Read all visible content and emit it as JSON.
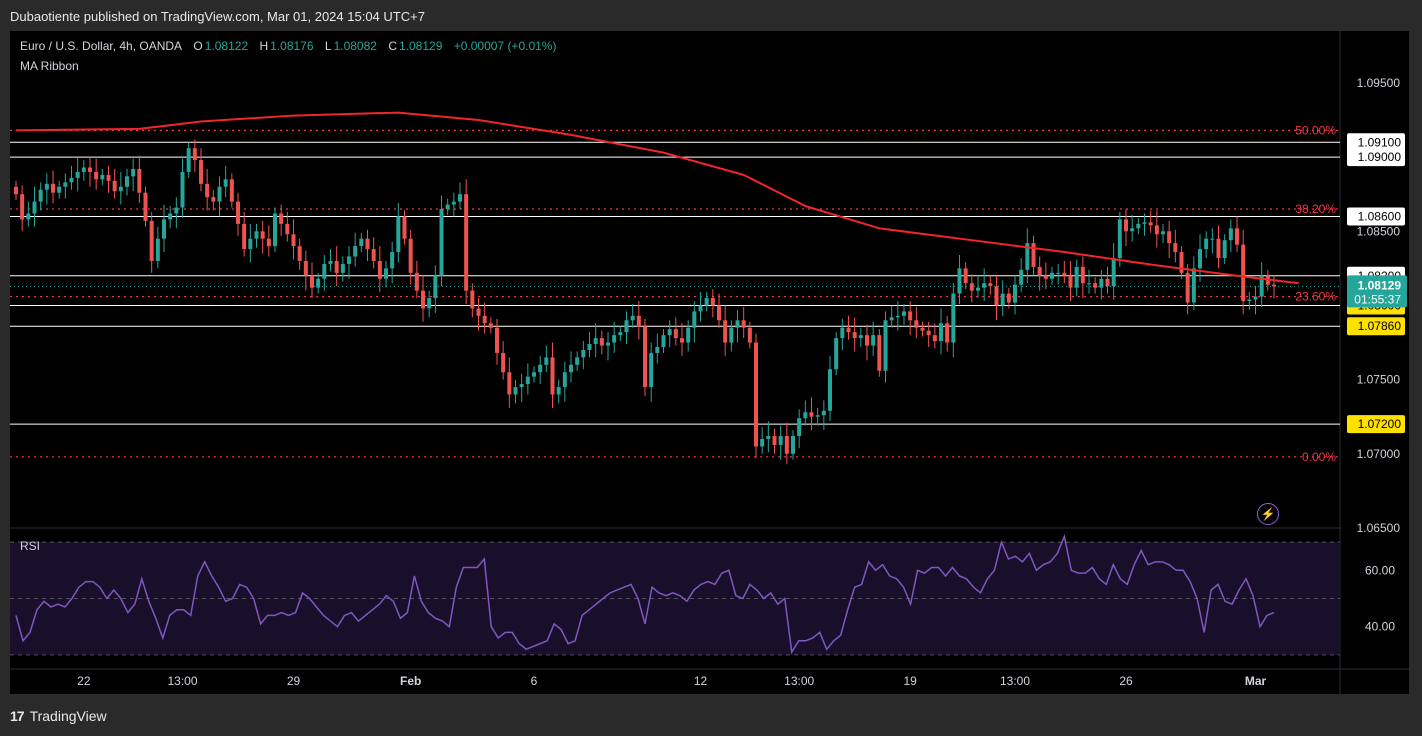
{
  "header": {
    "published": "Dubaotiente published on TradingView.com, Mar 01, 2024 15:04 UTC+7"
  },
  "legend": {
    "symbol": "Euro / U.S. Dollar, 4h, OANDA",
    "o_label": "O",
    "o_value": "1.08122",
    "h_label": "H",
    "h_value": "1.08176",
    "l_label": "L",
    "l_value": "1.08082",
    "c_label": "C",
    "c_value": "1.08129",
    "change": "+0.00007 (+0.01%)",
    "indicator": "MA Ribbon"
  },
  "rsi_label": "RSI",
  "footer": {
    "brand": "TradingView"
  },
  "colors": {
    "up": "#26a69a",
    "down": "#ef5350",
    "ma": "#f0262b",
    "fib": "#f23645",
    "rsi": "#7e57c2",
    "hline": "#ffffff",
    "highlight": "#ffe100"
  },
  "chart_data": [
    {
      "type": "candlestick",
      "ylim": [
        1.065,
        1.0985
      ],
      "price_ticks": [
        1.095,
        1.085,
        1.075,
        1.07,
        1.065
      ],
      "price_tick_labels": [
        "1.09500",
        "1.08500",
        "1.07500",
        "1.07000",
        "1.06500"
      ],
      "x_tick_labels": [
        "22",
        "13:00",
        "29",
        "Feb",
        "6",
        "12",
        "13:00",
        "19",
        "13:00",
        "26",
        "Mar"
      ],
      "x_tick_index": [
        11,
        27,
        45,
        64,
        84,
        111,
        127,
        145,
        162,
        180,
        201
      ],
      "horizontal_levels": [
        {
          "value": 1.091,
          "label": "1.09100",
          "style": "white"
        },
        {
          "value": 1.09,
          "label": "1.09000",
          "style": "white"
        },
        {
          "value": 1.086,
          "label": "1.08600",
          "style": "white"
        },
        {
          "value": 1.082,
          "label": "1.08200",
          "style": "white"
        },
        {
          "value": 1.08,
          "label": "1.08000",
          "style": "yellow"
        },
        {
          "value": 1.0786,
          "label": "1.07860",
          "style": "yellow"
        },
        {
          "value": 1.072,
          "label": "1.07200",
          "style": "yellow"
        }
      ],
      "fib_levels": [
        {
          "value": 1.0918,
          "label": "50.00%"
        },
        {
          "value": 1.0865,
          "label": "38.20%"
        },
        {
          "value": 1.0806,
          "label": "23.60%"
        },
        {
          "value": 1.0698,
          "label": "0.00%"
        }
      ],
      "current_price": {
        "value": 1.08129,
        "label": "1.08129",
        "countdown": "01:55:37"
      },
      "ma_ribbon": [
        [
          0,
          1.0918
        ],
        [
          20,
          1.0919
        ],
        [
          30,
          1.0924
        ],
        [
          45,
          1.0928
        ],
        [
          62,
          1.093
        ],
        [
          75,
          1.0925
        ],
        [
          90,
          1.0915
        ],
        [
          105,
          1.0903
        ],
        [
          118,
          1.0888
        ],
        [
          128,
          1.0867
        ],
        [
          140,
          1.0852
        ],
        [
          155,
          1.0844
        ],
        [
          170,
          1.0836
        ],
        [
          185,
          1.0827
        ],
        [
          198,
          1.082
        ],
        [
          208,
          1.0815
        ]
      ],
      "closes": [
        1.0875,
        1.0858,
        1.0862,
        1.087,
        1.0878,
        1.0882,
        1.0876,
        1.088,
        1.0883,
        1.0886,
        1.089,
        1.0893,
        1.089,
        1.0885,
        1.0888,
        1.0884,
        1.0877,
        1.088,
        1.0887,
        1.0892,
        1.0876,
        1.0857,
        1.083,
        1.0845,
        1.0858,
        1.0862,
        1.0866,
        1.089,
        1.0906,
        1.0898,
        1.0882,
        1.0873,
        1.087,
        1.088,
        1.0885,
        1.087,
        1.0855,
        1.0838,
        1.0845,
        1.085,
        1.0845,
        1.084,
        1.0862,
        1.0855,
        1.0848,
        1.084,
        1.083,
        1.082,
        1.0812,
        1.0818,
        1.0828,
        1.083,
        1.0822,
        1.0828,
        1.0833,
        1.084,
        1.0845,
        1.0838,
        1.083,
        1.0818,
        1.0825,
        1.0836,
        1.086,
        1.0845,
        1.0822,
        1.081,
        1.0798,
        1.0805,
        1.082,
        1.0865,
        1.0868,
        1.087,
        1.0875,
        1.081,
        1.0798,
        1.0793,
        1.0788,
        1.0785,
        1.0768,
        1.0755,
        1.074,
        1.0745,
        1.0747,
        1.0752,
        1.0755,
        1.076,
        1.0765,
        1.074,
        1.0745,
        1.0755,
        1.076,
        1.0765,
        1.077,
        1.0774,
        1.0778,
        1.0773,
        1.0775,
        1.078,
        1.0782,
        1.079,
        1.0793,
        1.0786,
        1.0745,
        1.0768,
        1.0772,
        1.078,
        1.0784,
        1.0778,
        1.0775,
        1.0785,
        1.0796,
        1.08,
        1.0805,
        1.08,
        1.079,
        1.0775,
        1.0785,
        1.079,
        1.0785,
        1.0775,
        1.0705,
        1.071,
        1.0712,
        1.0706,
        1.0712,
        1.07,
        1.0712,
        1.0724,
        1.0728,
        1.0725,
        1.0726,
        1.0729,
        1.0757,
        1.0778,
        1.0785,
        1.0782,
        1.0778,
        1.078,
        1.0773,
        1.078,
        1.0756,
        1.079,
        1.0792,
        1.0793,
        1.0796,
        1.079,
        1.0785,
        1.0783,
        1.078,
        1.0776,
        1.0788,
        1.0775,
        1.0808,
        1.0825,
        1.0815,
        1.081,
        1.0812,
        1.0815,
        1.0813,
        1.08,
        1.0808,
        1.0802,
        1.0814,
        1.0824,
        1.0842,
        1.0826,
        1.082,
        1.0818,
        1.0822,
        1.0822,
        1.082,
        1.0812,
        1.0826,
        1.0815,
        1.0815,
        1.0812,
        1.0818,
        1.0813,
        1.0832,
        1.0858,
        1.085,
        1.0852,
        1.0855,
        1.0856,
        1.0854,
        1.0848,
        1.085,
        1.0842,
        1.0836,
        1.0822,
        1.0802,
        1.0825,
        1.0838,
        1.0845,
        1.0845,
        1.0832,
        1.0844,
        1.0852,
        1.0841,
        1.0803,
        1.0804,
        1.0806,
        1.082,
        1.0814,
        1.08129
      ],
      "ohlc_note": "Candle values are closes estimated from the price axis; each candle opens at the previous close."
    },
    {
      "type": "line",
      "name": "RSI",
      "ylim": [
        25,
        75
      ],
      "ticks": [
        60,
        40
      ],
      "tick_labels": [
        "60.00",
        "40.00"
      ],
      "guide_lines": [
        70,
        50,
        30
      ],
      "values": [
        44,
        35,
        38,
        46,
        49,
        47,
        48,
        47,
        50,
        54,
        56,
        56,
        54,
        50,
        53,
        50,
        45,
        48,
        57,
        49,
        43,
        36,
        44,
        46,
        46,
        44,
        58,
        63,
        58,
        54,
        49,
        50,
        55,
        54,
        50,
        41,
        44,
        44,
        45,
        44,
        45,
        52,
        50,
        47,
        44,
        42,
        40,
        44,
        45,
        42,
        44,
        46,
        48,
        51,
        49,
        43,
        45,
        58,
        49,
        45,
        43,
        42,
        40,
        54,
        61,
        61,
        61,
        64,
        40,
        36,
        38,
        38,
        34,
        32,
        33,
        34,
        35,
        41,
        39,
        34,
        35,
        44,
        46,
        48,
        50,
        52,
        53,
        54,
        55,
        50,
        41,
        54,
        52,
        51,
        52,
        51,
        49,
        53,
        55,
        56,
        55,
        59,
        60,
        51,
        50,
        55,
        53,
        50,
        52,
        48,
        50,
        31,
        35,
        35,
        36,
        38,
        32,
        35,
        37,
        46,
        54,
        55,
        63,
        60,
        62,
        58,
        57,
        54,
        48,
        60,
        59,
        61,
        61,
        58,
        61,
        58,
        57,
        54,
        52,
        57,
        60,
        70,
        64,
        65,
        63,
        66,
        60,
        62,
        63,
        66,
        72,
        60,
        59,
        59,
        61,
        57,
        55,
        62,
        57,
        55,
        62,
        67,
        62,
        63,
        63,
        62,
        60,
        60,
        56,
        50,
        38,
        53,
        55,
        49,
        48,
        53,
        57,
        51,
        40,
        44,
        45
      ],
      "ma_shade": "#1a0f2a"
    }
  ]
}
